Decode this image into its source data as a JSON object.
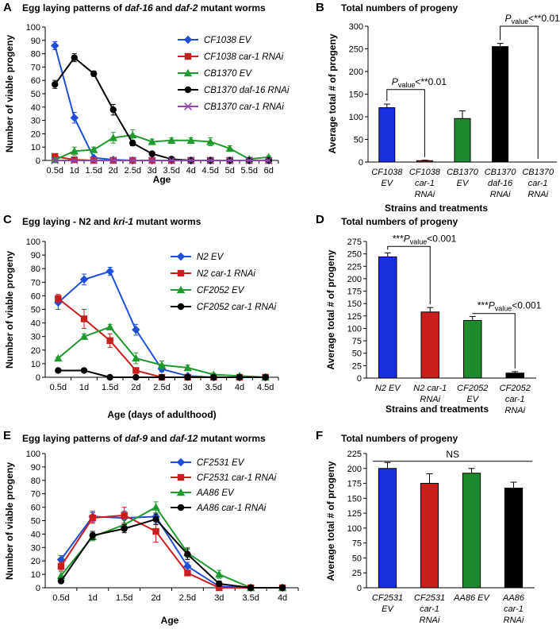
{
  "chart_data": [
    {
      "id": "A",
      "panel_label": "A",
      "type": "line",
      "title_parts": [
        {
          "text": "Egg laying patterns of ",
          "italic": false
        },
        {
          "text": "daf-16",
          "italic": true
        },
        {
          "text": " and ",
          "italic": false
        },
        {
          "text": "daf-2",
          "italic": true
        },
        {
          "text": " mutant worms",
          "italic": false
        }
      ],
      "xlabel": "Age",
      "ylabel": "Number of viable progeny",
      "ylim": [
        0,
        100
      ],
      "ystep": 10,
      "categories": [
        "0.5d",
        "1d",
        "1.5d",
        "2d",
        "2.5d",
        "3d",
        "3.5d",
        "4d",
        "4.5d",
        "5d",
        "5.5d",
        "6d"
      ],
      "series": [
        {
          "name": "CF1038 EV",
          "color": "#1f4fd8",
          "marker": "diamond",
          "values": [
            86,
            32,
            2,
            0.5,
            0,
            0,
            0,
            0,
            0,
            0,
            0,
            0
          ],
          "errors": [
            3,
            4,
            1,
            0.5,
            0,
            0,
            0,
            0,
            0,
            0,
            0,
            0
          ]
        },
        {
          "name": "CF1038 car-1 RNAi",
          "color": "#c81e1e",
          "marker": "square",
          "values": [
            3,
            0.5,
            0,
            0,
            0,
            0,
            0,
            0,
            0,
            0,
            0,
            0
          ],
          "errors": [
            1,
            0.5,
            0,
            0,
            0,
            0,
            0,
            0,
            0,
            0,
            0,
            0
          ]
        },
        {
          "name": "CB1370 EV",
          "color": "#1e9a2e",
          "marker": "triangle",
          "values": [
            0.5,
            7,
            8,
            17,
            19,
            14,
            15,
            15,
            14,
            9,
            1,
            2.5
          ],
          "errors": [
            0.5,
            3,
            2,
            4,
            4,
            2,
            2,
            2,
            3,
            2,
            1,
            1
          ]
        },
        {
          "name": "CB1370 daf-16 RNAi",
          "color": "#000000",
          "marker": "circle",
          "values": [
            57,
            77,
            65,
            38,
            13,
            5,
            1,
            0,
            0,
            0,
            0,
            0
          ],
          "errors": [
            3,
            3,
            2,
            4,
            2,
            1,
            0.5,
            0,
            0,
            0,
            0,
            0
          ]
        },
        {
          "name": "CB1370 car-1 RNAi",
          "color": "#8e44ad",
          "marker": "x",
          "values": [
            0,
            0,
            0,
            0,
            0,
            0,
            0,
            0,
            0,
            0,
            0,
            0
          ],
          "errors": [
            0,
            0,
            0,
            0,
            0,
            0,
            0,
            0,
            0,
            0,
            0,
            0
          ]
        }
      ]
    },
    {
      "id": "B",
      "panel_label": "B",
      "type": "bar",
      "title_parts": [
        {
          "text": "Total numbers of progeny",
          "italic": false
        }
      ],
      "xlabel": "Strains and treatments",
      "ylabel": "Average total # of progeny",
      "ylim": [
        0,
        300
      ],
      "ystep": 50,
      "categories": [
        [
          "CF1038",
          "EV"
        ],
        [
          "CF1038",
          "car-1",
          "RNAi"
        ],
        [
          "CB1370",
          "EV"
        ],
        [
          "CB1370",
          "daf-16",
          "RNAi"
        ],
        [
          "CB1370",
          "car-1",
          "RNAi"
        ]
      ],
      "values": [
        120,
        3,
        96,
        255,
        0
      ],
      "errors": [
        8,
        1,
        17,
        7,
        0
      ],
      "colors": [
        "#1a2fe0",
        "#c81e1e",
        "#1e8a2e",
        "#000000",
        "#ffffff"
      ],
      "annotations": [
        {
          "from": 0,
          "to": 1,
          "label_p": "P",
          "label_sub": "value",
          "label_rest": "<**0.01",
          "bracket_y": 160
        },
        {
          "from": 3,
          "to": 4,
          "label_p": "P",
          "label_sub": "value",
          "label_rest": "<**0.01",
          "bracket_y": 300
        }
      ]
    },
    {
      "id": "C",
      "panel_label": "C",
      "type": "line",
      "title_parts": [
        {
          "text": "Egg laying - N2 and ",
          "italic": false
        },
        {
          "text": "kri-1",
          "italic": true
        },
        {
          "text": " mutant worms",
          "italic": false
        }
      ],
      "xlabel": "Age (days of adulthood)",
      "ylabel": "Number of viable progeny",
      "ylim": [
        0,
        100
      ],
      "ystep": 10,
      "categories": [
        "0.5d",
        "1d",
        "1.5d",
        "2d",
        "2.5d",
        "3d",
        "3.5d",
        "4d",
        "4.5d"
      ],
      "series": [
        {
          "name": "N2 EV",
          "color": "#1f4fd8",
          "marker": "diamond",
          "values": [
            55,
            72,
            78,
            35,
            6,
            1,
            0,
            0,
            0
          ],
          "errors": [
            5,
            4,
            3,
            4,
            2,
            1,
            0,
            0,
            0
          ]
        },
        {
          "name": "N2 car-1 RNAi",
          "color": "#c81e1e",
          "marker": "square",
          "values": [
            58,
            43,
            27,
            5,
            0,
            0,
            0,
            0,
            0
          ],
          "errors": [
            3,
            7,
            5,
            2,
            0,
            0,
            0,
            0,
            0
          ]
        },
        {
          "name": "CF2052 EV",
          "color": "#1e9a2e",
          "marker": "triangle",
          "values": [
            14,
            30,
            37,
            14,
            9,
            7,
            2,
            1,
            0
          ],
          "errors": [
            1,
            2,
            2,
            4,
            3,
            2,
            1,
            1,
            0
          ]
        },
        {
          "name": "CF2052 car-1 RNAi",
          "color": "#000000",
          "marker": "circle",
          "values": [
            5,
            5,
            0,
            0,
            0,
            0,
            0,
            0,
            0
          ],
          "errors": [
            0.5,
            0.5,
            0,
            0,
            0,
            0,
            0,
            0,
            0
          ]
        }
      ]
    },
    {
      "id": "D",
      "panel_label": "D",
      "type": "bar",
      "title_parts": [
        {
          "text": "Total numbers of progeny",
          "italic": false
        }
      ],
      "xlabel": "Strains and treatments",
      "ylabel": "Average total # of progeny",
      "ylim": [
        0,
        275
      ],
      "ystep": 25,
      "categories": [
        [
          "N2 EV"
        ],
        [
          "N2 car-1",
          "RNAi"
        ],
        [
          "CF2052",
          "EV"
        ],
        [
          "CF2052",
          "car-1",
          "RNAi"
        ]
      ],
      "values": [
        244,
        133,
        116,
        10
      ],
      "errors": [
        8,
        9,
        8,
        3
      ],
      "colors": [
        "#1a2fe0",
        "#c81e1e",
        "#1e8a2e",
        "#000000"
      ],
      "annotations": [
        {
          "from": 0,
          "to": 1,
          "label_pre": "***",
          "label_p": "P",
          "label_sub": "value",
          "label_rest": "<0.001",
          "bracket_y": 265
        },
        {
          "from": 2,
          "to": 3,
          "label_pre": "***",
          "label_p": "P",
          "label_sub": "value",
          "label_rest": "<0.001",
          "bracket_y": 130
        }
      ]
    },
    {
      "id": "E",
      "panel_label": "E",
      "type": "line",
      "title_parts": [
        {
          "text": "Egg laying patterns of ",
          "italic": false
        },
        {
          "text": "daf-9",
          "italic": true
        },
        {
          "text": " and ",
          "italic": false
        },
        {
          "text": "daf-12",
          "italic": true
        },
        {
          "text": " mutant worms",
          "italic": false
        }
      ],
      "xlabel": "Age",
      "ylabel": "Number of viable progeny",
      "ylim": [
        0,
        100
      ],
      "ystep": 10,
      "categories": [
        "0.5d",
        "1d",
        "1.5d",
        "2d",
        "2.5d",
        "3d",
        "3.5d",
        "4d"
      ],
      "series": [
        {
          "name": "CF2531 EV",
          "color": "#1f4fd8",
          "marker": "diamond",
          "values": [
            21,
            53,
            52,
            53,
            16,
            1,
            0,
            0
          ],
          "errors": [
            3,
            4,
            5,
            5,
            3,
            1,
            0,
            0
          ]
        },
        {
          "name": "CF2531 car-1 RNAi",
          "color": "#c81e1e",
          "marker": "square",
          "values": [
            16,
            52,
            54,
            42,
            11,
            0,
            0,
            0
          ],
          "errors": [
            3,
            4,
            6,
            8,
            2,
            0,
            0,
            0
          ]
        },
        {
          "name": "AA86 EV",
          "color": "#1e9a2e",
          "marker": "triangle",
          "values": [
            9,
            38,
            47,
            60,
            26,
            10,
            0,
            0
          ],
          "errors": [
            3,
            3,
            4,
            4,
            4,
            3,
            0,
            0
          ]
        },
        {
          "name": "AA86 car-1 RNAi",
          "color": "#000000",
          "marker": "circle",
          "values": [
            5,
            39,
            44,
            51,
            25,
            3,
            0,
            0
          ],
          "errors": [
            1,
            3,
            3,
            4,
            4,
            2,
            0,
            0
          ]
        }
      ]
    },
    {
      "id": "F",
      "panel_label": "F",
      "type": "bar",
      "title_parts": [
        {
          "text": "Total numbers of progeny",
          "italic": false
        }
      ],
      "xlabel": "",
      "ylabel": "Average total # of progeny",
      "ylim": [
        0,
        225
      ],
      "ystep": 25,
      "categories": [
        [
          "CF2531",
          "EV"
        ],
        [
          "CF2531",
          "car-1",
          "RNAi"
        ],
        [
          "AA86 EV"
        ],
        [
          "AA86",
          "car-1",
          "RNAi"
        ]
      ],
      "values": [
        200,
        175,
        192,
        167
      ],
      "errors": [
        10,
        16,
        8,
        10
      ],
      "colors": [
        "#1a2fe0",
        "#c81e1e",
        "#1e8a2e",
        "#000000"
      ],
      "annotations": [
        {
          "span": [
            0,
            3
          ],
          "label_rest": "NS",
          "bracket_y": 212
        }
      ]
    }
  ]
}
